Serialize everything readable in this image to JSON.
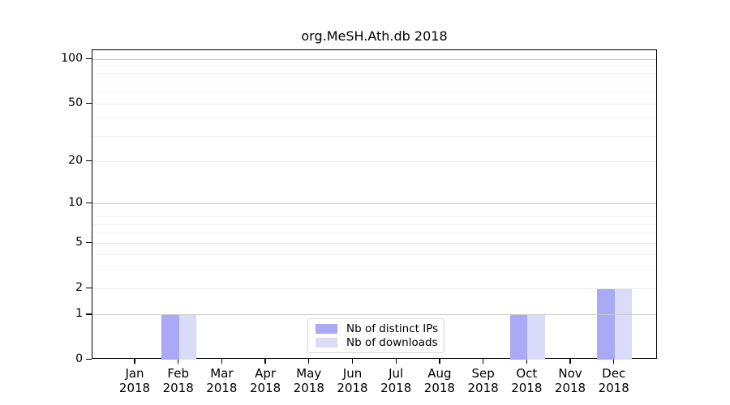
{
  "chart_data": {
    "type": "bar",
    "title": "org.MeSH.Ath.db 2018",
    "x_categories": [
      {
        "month": "Jan",
        "year": "2018"
      },
      {
        "month": "Feb",
        "year": "2018"
      },
      {
        "month": "Mar",
        "year": "2018"
      },
      {
        "month": "Apr",
        "year": "2018"
      },
      {
        "month": "May",
        "year": "2018"
      },
      {
        "month": "Jun",
        "year": "2018"
      },
      {
        "month": "Jul",
        "year": "2018"
      },
      {
        "month": "Aug",
        "year": "2018"
      },
      {
        "month": "Sep",
        "year": "2018"
      },
      {
        "month": "Oct",
        "year": "2018"
      },
      {
        "month": "Nov",
        "year": "2018"
      },
      {
        "month": "Dec",
        "year": "2018"
      }
    ],
    "series": [
      {
        "name": "Nb of distinct IPs",
        "color": "#a9a9f5",
        "values": [
          0,
          1,
          0,
          0,
          0,
          0,
          0,
          0,
          0,
          1,
          0,
          2
        ]
      },
      {
        "name": "Nb of downloads",
        "color": "#dadaf9",
        "values": [
          0,
          1,
          0,
          0,
          0,
          0,
          0,
          0,
          0,
          1,
          0,
          2
        ]
      }
    ],
    "y_ticks": [
      0,
      1,
      2,
      5,
      10,
      20,
      50,
      100
    ],
    "y_decade_lines": [
      1,
      10,
      100
    ],
    "y_minor_gridlines": [
      3,
      4,
      6,
      7,
      8,
      9,
      30,
      40,
      60,
      70,
      80,
      90
    ],
    "y_scale": "log1p",
    "ylim": [
      0,
      114
    ],
    "grid": "horizontal",
    "legend_position": "bottom-center",
    "colors": {
      "frame": "#000000",
      "background": "#ffffff",
      "decade_gridline": "#c9c9c9",
      "major_gridline": "#eaeaea",
      "minor_gridline": "#f2f2f2"
    }
  }
}
